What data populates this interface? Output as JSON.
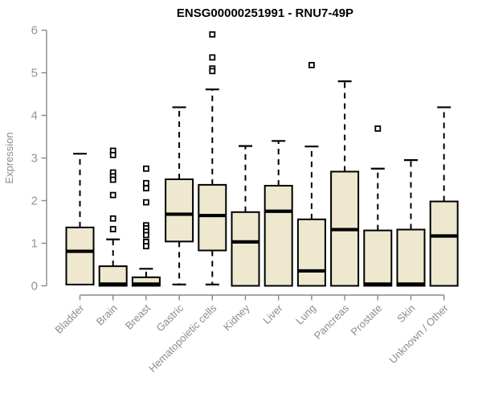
{
  "chart_data": {
    "type": "boxplot",
    "title": "ENSG00000251991 - RNU7-49P",
    "xlabel": "",
    "ylabel": "Expression",
    "ylim": [
      0,
      6
    ],
    "yticks": [
      0,
      1,
      2,
      3,
      4,
      5,
      6
    ],
    "grid": false,
    "legend": false,
    "categories": [
      "Bladder",
      "Brain",
      "Breast",
      "Gastric",
      "Hematopoietic cells",
      "Kidney",
      "Liver",
      "Lung",
      "Pancreas",
      "Prostate",
      "Skin",
      "Unknown / Other"
    ],
    "boxes": [
      {
        "category": "Bladder",
        "low": 0.03,
        "q1": 0.03,
        "median": 0.81,
        "q3": 1.37,
        "high": 3.1,
        "outliers": []
      },
      {
        "category": "Brain",
        "low": 0.0,
        "q1": 0.0,
        "median": 0.04,
        "q3": 0.46,
        "high": 1.09,
        "outliers": [
          3.17,
          3.07,
          2.66,
          2.57,
          2.49,
          2.13,
          1.58,
          1.33
        ]
      },
      {
        "category": "Breast",
        "low": 0.0,
        "q1": 0.0,
        "median": 0.04,
        "q3": 0.2,
        "high": 0.4,
        "outliers": [
          2.75,
          2.41,
          2.29,
          1.96,
          1.42,
          1.35,
          1.27,
          1.19,
          1.03,
          0.93
        ]
      },
      {
        "category": "Gastric",
        "low": 0.03,
        "q1": 1.04,
        "median": 1.68,
        "q3": 2.5,
        "high": 4.19,
        "outliers": []
      },
      {
        "category": "Hematopoietic cells",
        "low": 0.03,
        "q1": 0.83,
        "median": 1.65,
        "q3": 2.37,
        "high": 4.61,
        "outliers": [
          5.9,
          5.36,
          5.1,
          5.04
        ]
      },
      {
        "category": "Kidney",
        "low": 0.0,
        "q1": 0.0,
        "median": 1.03,
        "q3": 1.73,
        "high": 3.28,
        "outliers": []
      },
      {
        "category": "Liver",
        "low": 0.0,
        "q1": 0.0,
        "median": 1.75,
        "q3": 2.35,
        "high": 3.4,
        "outliers": []
      },
      {
        "category": "Lung",
        "low": 0.0,
        "q1": 0.0,
        "median": 0.35,
        "q3": 1.56,
        "high": 3.27,
        "outliers": [
          5.18
        ]
      },
      {
        "category": "Pancreas",
        "low": 0.0,
        "q1": 0.0,
        "median": 1.32,
        "q3": 2.68,
        "high": 4.8,
        "outliers": []
      },
      {
        "category": "Prostate",
        "low": 0.0,
        "q1": 0.0,
        "median": 0.04,
        "q3": 1.3,
        "high": 2.75,
        "outliers": [
          3.69
        ]
      },
      {
        "category": "Skin",
        "low": 0.0,
        "q1": 0.0,
        "median": 0.04,
        "q3": 1.32,
        "high": 2.95,
        "outliers": []
      },
      {
        "category": "Unknown / Other",
        "low": 0.0,
        "q1": 0.0,
        "median": 1.17,
        "q3": 1.98,
        "high": 4.19,
        "outliers": []
      }
    ],
    "colors": {
      "box_fill": "#EDE8CE",
      "box_stroke": "#000000",
      "median": "#000000",
      "whisker": "#000000",
      "outlier_stroke": "#000000",
      "axis": "#898989",
      "y_tick_label": "#8B95A1",
      "x_tick_label": "#8C8C8C",
      "title": "#000000",
      "background": "#FFFFFF"
    }
  }
}
